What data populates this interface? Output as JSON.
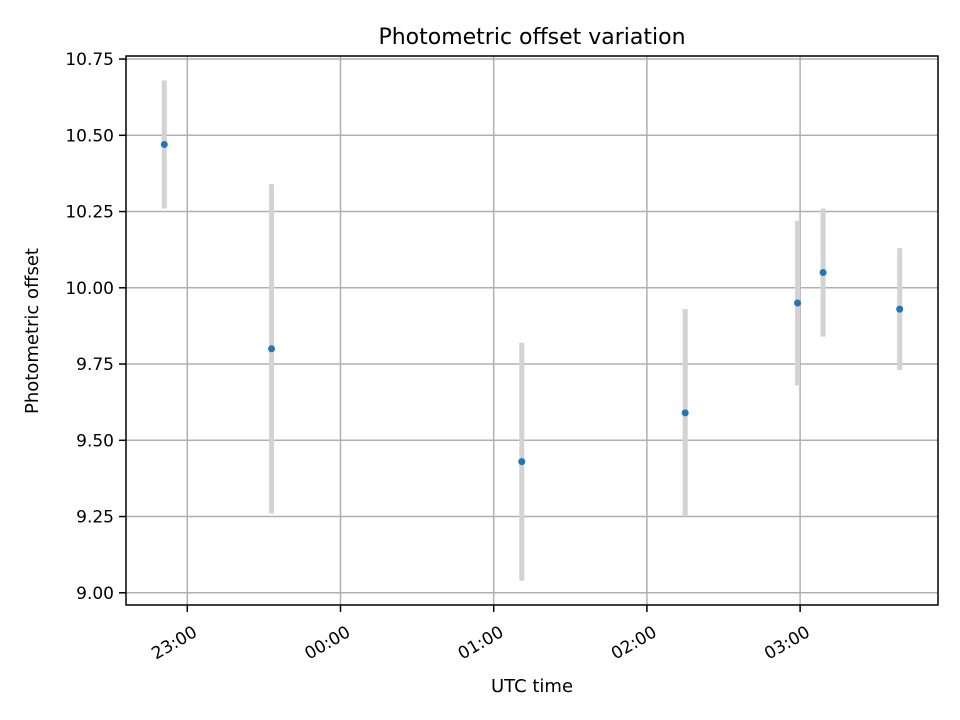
{
  "chart_data": {
    "type": "scatter",
    "title": "Photometric offset variation",
    "xlabel": "UTC time",
    "ylabel": "Photometric offset",
    "x_unit": "UTC clock time (rolls over midnight)",
    "x_ticks": [
      "23:00",
      "00:00",
      "01:00",
      "02:00",
      "03:00"
    ],
    "y_ticks": [
      "9.00",
      "9.25",
      "9.50",
      "9.75",
      "10.00",
      "10.25",
      "10.50",
      "10.75"
    ],
    "xlim": [
      "22:36",
      "03:54"
    ],
    "ylim": [
      8.96,
      10.76
    ],
    "grid": true,
    "colors": {
      "point": "#1f77b4",
      "errorbar": "#d3d3d3",
      "grid": "#b0b0b0"
    },
    "points": [
      {
        "x": "22:51",
        "y": 10.47,
        "err": 0.21
      },
      {
        "x": "23:33",
        "y": 9.8,
        "err": 0.54
      },
      {
        "x": "01:11",
        "y": 9.43,
        "err": 0.39
      },
      {
        "x": "02:15",
        "y": 9.59,
        "err": 0.34
      },
      {
        "x": "02:59",
        "y": 9.95,
        "err": 0.27
      },
      {
        "x": "03:09",
        "y": 10.05,
        "err": 0.21
      },
      {
        "x": "03:39",
        "y": 9.93,
        "err": 0.2
      }
    ]
  }
}
